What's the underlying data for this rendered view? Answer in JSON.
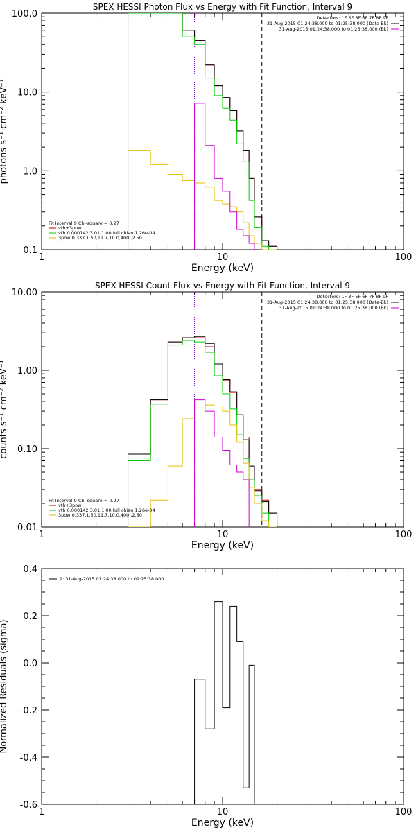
{
  "chart_data": [
    {
      "type": "line",
      "title": "SPEX HESSI Photon Flux vs Energy with Fit Function, Interval 9",
      "xlabel": "Energy (keV)",
      "ylabel": "photons s⁻¹ cm⁻² keV⁻¹",
      "xscale": "log",
      "yscale": "log",
      "xlim": [
        1,
        100
      ],
      "ylim": [
        0.1,
        100
      ],
      "x_ticks": [
        {
          "v": 1,
          "label": "1"
        },
        {
          "v": 10,
          "label": "10"
        },
        {
          "v": 100,
          "label": "100"
        }
      ],
      "y_ticks": [
        {
          "v": 0.1,
          "label": "0.1"
        },
        {
          "v": 1,
          "label": "1.0"
        },
        {
          "v": 10,
          "label": "10.0"
        },
        {
          "v": 100,
          "label": "100.0"
        }
      ],
      "x_edges": [
        3,
        4,
        5,
        6,
        7,
        8,
        9,
        10,
        11,
        12,
        13,
        14,
        15,
        16.5,
        18,
        20
      ],
      "series": [
        {
          "name": "vth+3pow",
          "color": "#cc0000",
          "values": [
            100,
            100,
            100,
            60,
            45,
            22,
            12,
            8.5,
            5.8,
            3.2,
            1.8,
            0.8,
            0.26,
            0.13,
            0.11
          ]
        },
        {
          "name": "data",
          "color": "#000000",
          "values": [
            100,
            100,
            100,
            60,
            45,
            22,
            12,
            8.5,
            5.8,
            3.2,
            1.8,
            0.8,
            0.26,
            0.13,
            0.11
          ]
        },
        {
          "name": "vth 0.000142,3.01,1.00  full chian 1.26e-04",
          "color": "#00cc00",
          "values": [
            100,
            100,
            100,
            50,
            40,
            15,
            9,
            6.2,
            4.4,
            2.2,
            1.3,
            0.42,
            0.19,
            0.11,
            0.1
          ]
        },
        {
          "name": "3pow 0.337,1.50,11.7,10.0,400.,2.50",
          "color": "#e6c000",
          "values": [
            1.8,
            1.2,
            0.9,
            0.75,
            0.7,
            0.62,
            0.42,
            0.38,
            0.35,
            0.3,
            0.22,
            0.15,
            0.12,
            0.1,
            0.1
          ]
        },
        {
          "name": "background",
          "color": "#cc00cc",
          "values": [
            null,
            null,
            null,
            null,
            7.2,
            2.1,
            0.8,
            0.55,
            0.3,
            0.18,
            0.15,
            0.12,
            null,
            null,
            null
          ]
        }
      ],
      "vlines": [
        {
          "x": 7,
          "style": "dotted",
          "color": "#7700cc"
        },
        {
          "x": 16.5,
          "style": "dashed",
          "color": "#000000"
        }
      ],
      "legend_tr": [
        {
          "text": "Detectors: 1F 3F 5F 6F 7F 8F 9F",
          "color": ""
        },
        {
          "text": "31-Aug-2015 01:24:38.000 to 01:25:38.000 (Data-Bk)",
          "color": "#000000"
        },
        {
          "text": "31-Aug-2015 01:24:38.000 to 01:25:38.000 (Bk)",
          "color": "#cc00cc"
        }
      ],
      "legend_bl": [
        {
          "text": "Fit Interval 9    Chi-square = 0.27",
          "color": ""
        },
        {
          "text": "vth+3pow",
          "color": "#cc0000"
        },
        {
          "text": "vth 0.000142,3.01,1.00  full chian 1.26e-04",
          "color": "#00cc00"
        },
        {
          "text": "3pow 0.337,1.50,11.7,10.0,400.,2.50",
          "color": "#e6c000"
        }
      ]
    },
    {
      "type": "line",
      "title": "SPEX HESSI Count Flux vs Energy with Fit Function, Interval 9",
      "xlabel": "Energy (keV)",
      "ylabel": "counts s⁻¹ cm⁻² keV⁻¹",
      "xscale": "log",
      "yscale": "log",
      "xlim": [
        1,
        100
      ],
      "ylim": [
        0.01,
        10
      ],
      "x_ticks": [
        {
          "v": 1,
          "label": "1"
        },
        {
          "v": 10,
          "label": "10"
        },
        {
          "v": 100,
          "label": "100"
        }
      ],
      "y_ticks": [
        {
          "v": 0.01,
          "label": "0.01"
        },
        {
          "v": 0.1,
          "label": "0.10"
        },
        {
          "v": 1,
          "label": "1.00"
        },
        {
          "v": 10,
          "label": "10.00"
        }
      ],
      "x_edges": [
        3,
        4,
        5,
        6,
        7,
        8,
        9,
        10,
        11,
        12,
        13,
        14,
        15,
        16.5,
        18,
        20
      ],
      "series": [
        {
          "name": "vth+3pow",
          "color": "#cc0000",
          "values": [
            0.085,
            0.42,
            2.3,
            2.6,
            2.6,
            2.0,
            1.2,
            0.75,
            0.52,
            0.27,
            0.14,
            0.06,
            0.03,
            0.022,
            0.015
          ]
        },
        {
          "name": "data",
          "color": "#000000",
          "values": [
            0.085,
            0.42,
            2.3,
            2.6,
            2.7,
            2.2,
            1.2,
            0.76,
            0.53,
            0.27,
            0.13,
            0.06,
            0.029,
            0.021,
            0.015
          ]
        },
        {
          "name": "vth 0.000142,3.01,1.00  full chian 1.26e-04",
          "color": "#00cc00",
          "values": [
            0.07,
            0.37,
            2.1,
            2.4,
            2.3,
            1.7,
            0.85,
            0.5,
            0.32,
            0.15,
            0.075,
            0.04,
            0.025,
            0.015,
            0.01
          ]
        },
        {
          "name": "3pow 0.337,1.50,11.7,10.0,400.,2.50",
          "color": "#e6c000",
          "values": [
            0.01,
            0.022,
            0.06,
            0.24,
            0.33,
            0.36,
            0.35,
            0.3,
            0.2,
            0.12,
            0.065,
            0.032,
            0.02,
            0.012,
            0.01
          ]
        },
        {
          "name": "background",
          "color": "#cc00cc",
          "values": [
            null,
            null,
            null,
            null,
            0.42,
            0.3,
            0.14,
            0.095,
            0.062,
            0.05,
            0.04,
            null,
            null,
            null,
            null
          ]
        }
      ],
      "vlines": [
        {
          "x": 7,
          "style": "dotted",
          "color": "#7700cc"
        },
        {
          "x": 16.5,
          "style": "dashed",
          "color": "#000000"
        }
      ],
      "legend_tr": [
        {
          "text": "Detectors: 1F 3F 5F 6F 7F 8F 9F",
          "color": ""
        },
        {
          "text": "31-Aug-2015 01:24:38.000 to 01:25:38.000 (Data-Bk)",
          "color": "#000000"
        },
        {
          "text": "31-Aug-2015 01:24:38.000 to 01:25:38.000 (Bk)",
          "color": "#cc00cc"
        }
      ],
      "legend_bl": [
        {
          "text": "Fit Interval 9    Chi-square = 0.27",
          "color": ""
        },
        {
          "text": "vth+3pow",
          "color": "#cc0000"
        },
        {
          "text": "vth 0.000142,3.01,1.00  full chian 1.26e-04",
          "color": "#00cc00"
        },
        {
          "text": "3pow 0.337,1.50,11.7,10.0,400.,2.50",
          "color": "#e6c000"
        }
      ]
    },
    {
      "type": "line",
      "title": "",
      "xlabel": "Energy (keV)",
      "ylabel": "Normalized Residuals (sigma)",
      "xscale": "log",
      "yscale": "linear",
      "xlim": [
        1,
        100
      ],
      "ylim": [
        -0.6,
        0.4
      ],
      "x_ticks": [
        {
          "v": 1,
          "label": "1"
        },
        {
          "v": 10,
          "label": "10"
        },
        {
          "v": 100,
          "label": "100"
        }
      ],
      "y_ticks": [
        {
          "v": -0.6,
          "label": "-0.6"
        },
        {
          "v": -0.4,
          "label": "-0.4"
        },
        {
          "v": -0.2,
          "label": "-0.2"
        },
        {
          "v": 0,
          "label": "0.0"
        },
        {
          "v": 0.2,
          "label": "0.2"
        },
        {
          "v": 0.4,
          "label": "0.4"
        }
      ],
      "x_edges": [
        7,
        8,
        9,
        10,
        11,
        12,
        13,
        14,
        15,
        16.5
      ],
      "baseline": -0.6,
      "series": [
        {
          "name": "9: 31-Aug-2015 01:24:38.000 to 01:25:38.000",
          "color": "#000000",
          "values": [
            -0.07,
            -0.28,
            0.26,
            -0.19,
            0.24,
            0.09,
            -0.53,
            -0.01,
            null
          ]
        }
      ],
      "vlines": [],
      "legend_tr": [],
      "legend_bl": [],
      "legend_tl": [
        {
          "text": "9: 31-Aug-2015 01:24:38.000 to 01:25:38.000",
          "color": "#000000"
        }
      ]
    }
  ]
}
